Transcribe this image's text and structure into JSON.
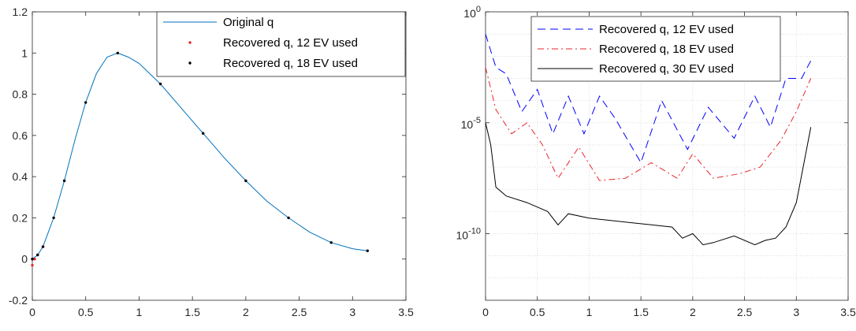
{
  "chart_data": [
    {
      "type": "line",
      "title": "",
      "xlabel": "",
      "ylabel": "",
      "xlim": [
        0,
        3.5
      ],
      "ylim": [
        -0.2,
        1.2
      ],
      "x_ticks": [
        "0",
        "0.5",
        "1",
        "1.5",
        "2",
        "2.5",
        "3",
        "3.5"
      ],
      "y_ticks": [
        "-0.2",
        "0",
        "0.2",
        "0.4",
        "0.6",
        "0.8",
        "1",
        "1.2"
      ],
      "grid": false,
      "legend_position": "top-right",
      "series": [
        {
          "name": "Original q",
          "style": "line",
          "color": "#0072BD",
          "x": [
            0.0,
            0.05,
            0.1,
            0.15,
            0.2,
            0.3,
            0.4,
            0.5,
            0.6,
            0.7,
            0.8,
            0.9,
            1.0,
            1.2,
            1.4,
            1.6,
            1.8,
            2.0,
            2.2,
            2.4,
            2.6,
            2.8,
            3.0,
            3.14
          ],
          "y": [
            0.0,
            0.02,
            0.06,
            0.13,
            0.2,
            0.38,
            0.58,
            0.76,
            0.9,
            0.98,
            1.0,
            0.98,
            0.95,
            0.85,
            0.73,
            0.61,
            0.49,
            0.38,
            0.28,
            0.2,
            0.13,
            0.08,
            0.05,
            0.04
          ]
        },
        {
          "name": "Recovered q, 12 EV used",
          "style": "markers",
          "color": "#e8262a",
          "x": [
            0.0,
            0.02,
            0.05,
            0.1
          ],
          "y": [
            -0.03,
            0.0,
            0.02,
            0.06
          ]
        },
        {
          "name": "Recovered q, 18 EV used",
          "style": "markers",
          "color": "#000000",
          "x": [
            0.0,
            0.05,
            0.1,
            0.2,
            0.3,
            0.5,
            0.8,
            1.2,
            1.6,
            2.0,
            2.4,
            2.8,
            3.14
          ],
          "y": [
            0.0,
            0.02,
            0.06,
            0.2,
            0.38,
            0.76,
            1.0,
            0.85,
            0.61,
            0.38,
            0.2,
            0.08,
            0.04
          ]
        }
      ]
    },
    {
      "type": "line",
      "title": "",
      "xlabel": "",
      "ylabel": "",
      "xlim": [
        0,
        3.5
      ],
      "ylim": [
        -13,
        0
      ],
      "yscale": "log",
      "x_ticks": [
        "0",
        "0.5",
        "1",
        "1.5",
        "2",
        "2.5",
        "3",
        "3.5"
      ],
      "y_ticks": [
        {
          "base": "10",
          "exp": "0"
        },
        {
          "base": "10",
          "exp": "-5"
        },
        {
          "base": "10",
          "exp": "-10"
        }
      ],
      "grid": true,
      "legend_position": "top-right",
      "series": [
        {
          "name": "Recovered q, 12 EV used",
          "style": "dashed",
          "color": "#0000ff",
          "x": [
            0.0,
            0.1,
            0.2,
            0.35,
            0.5,
            0.65,
            0.8,
            0.95,
            1.1,
            1.25,
            1.5,
            1.7,
            1.95,
            2.15,
            2.4,
            2.6,
            2.75,
            2.9,
            3.05,
            3.14
          ],
          "y_log10": [
            -1.0,
            -2.5,
            -2.8,
            -4.5,
            -3.5,
            -5.5,
            -3.8,
            -5.5,
            -3.8,
            -4.8,
            -6.8,
            -4.0,
            -6.2,
            -4.3,
            -5.7,
            -3.8,
            -5.2,
            -3.0,
            -3.0,
            -2.2
          ]
        },
        {
          "name": "Recovered q, 18 EV used",
          "style": "dash-dot",
          "color": "#e8262a",
          "x": [
            0.0,
            0.1,
            0.25,
            0.4,
            0.55,
            0.7,
            0.9,
            1.1,
            1.35,
            1.6,
            1.85,
            2.0,
            2.2,
            2.45,
            2.65,
            2.85,
            3.0,
            3.14
          ],
          "y_log10": [
            -2.5,
            -4.4,
            -5.5,
            -5.0,
            -6.0,
            -7.5,
            -6.1,
            -7.6,
            -7.5,
            -6.8,
            -7.5,
            -6.4,
            -7.5,
            -7.3,
            -7.0,
            -5.8,
            -4.5,
            -3.0
          ]
        },
        {
          "name": "Recovered q, 30 EV used",
          "style": "solid",
          "color": "#000000",
          "x": [
            0.0,
            0.05,
            0.1,
            0.2,
            0.4,
            0.6,
            0.7,
            0.8,
            1.0,
            1.2,
            1.4,
            1.6,
            1.8,
            1.9,
            2.0,
            2.1,
            2.2,
            2.4,
            2.6,
            2.7,
            2.8,
            2.9,
            3.0,
            3.14
          ],
          "y_log10": [
            -5.0,
            -6.0,
            -7.9,
            -8.3,
            -8.6,
            -9.0,
            -9.6,
            -9.1,
            -9.3,
            -9.4,
            -9.5,
            -9.6,
            -9.7,
            -10.2,
            -10.0,
            -10.5,
            -10.4,
            -10.1,
            -10.5,
            -10.3,
            -10.2,
            -9.7,
            -8.6,
            -5.2
          ]
        }
      ]
    }
  ]
}
